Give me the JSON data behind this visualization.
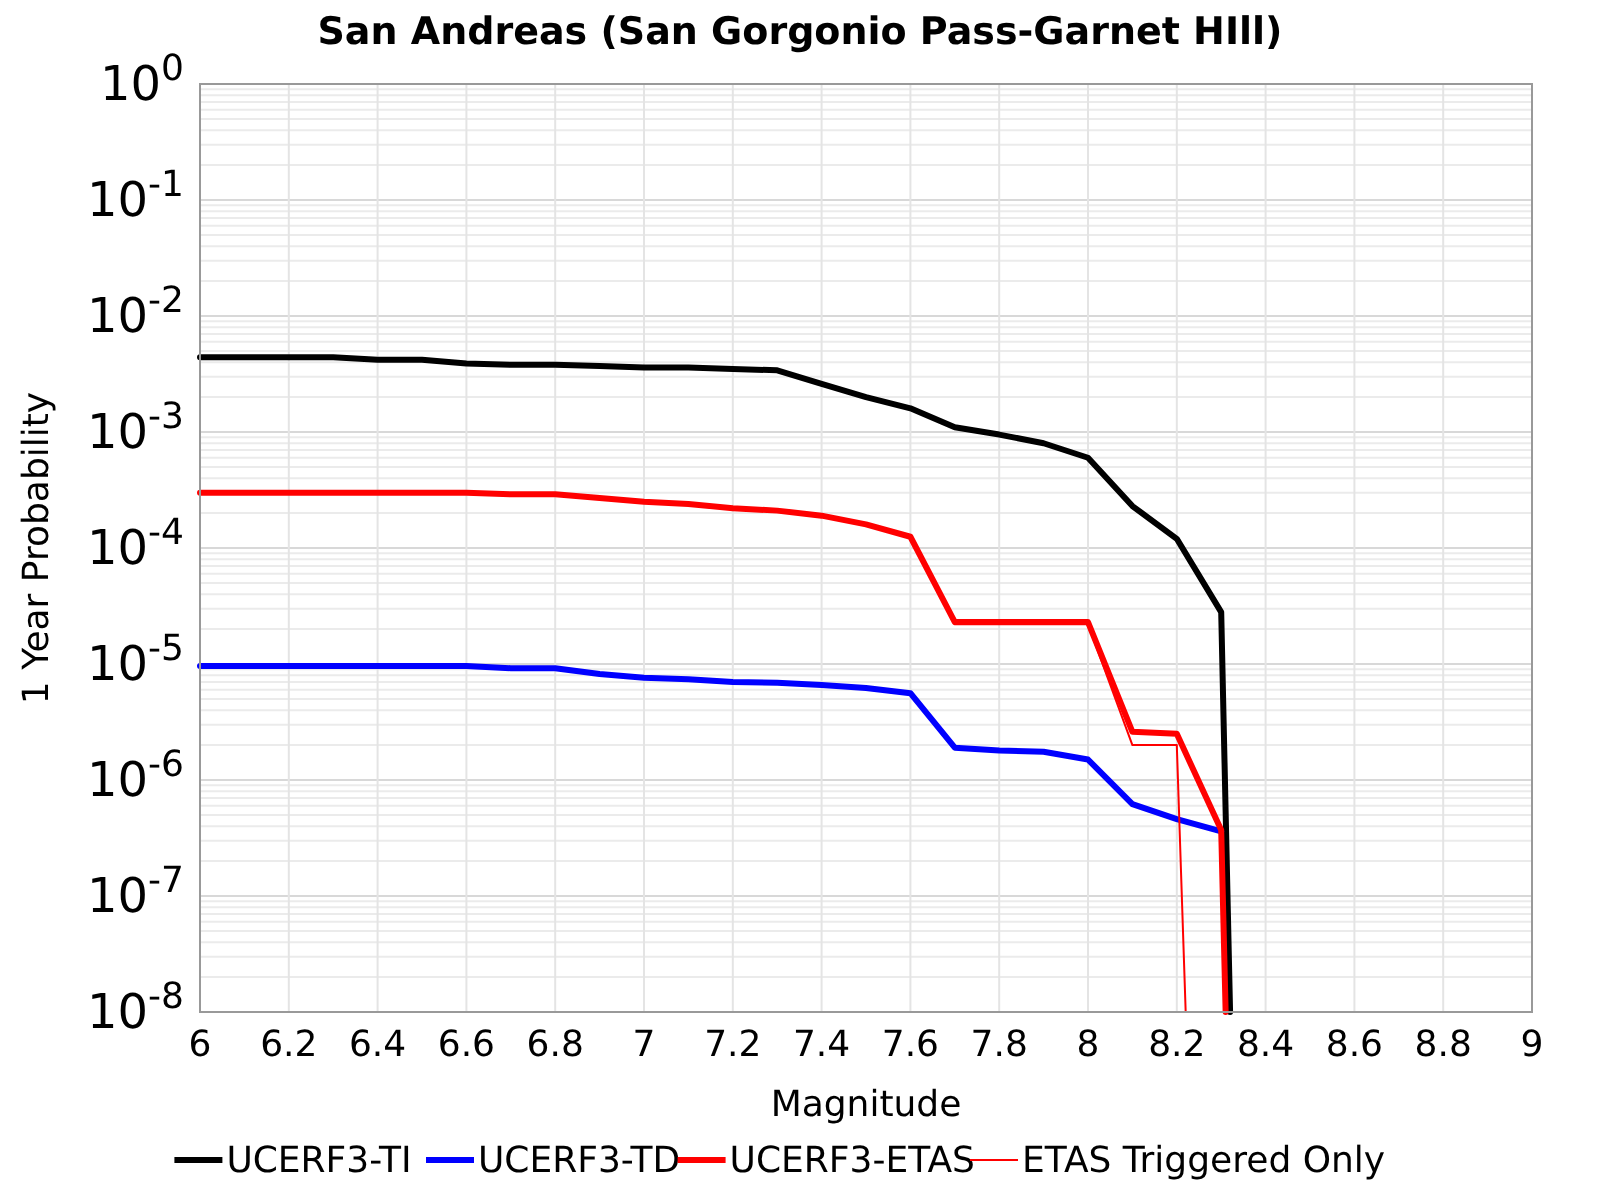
{
  "chart_data": {
    "type": "line",
    "title": "San Andreas (San Gorgonio Pass-Garnet HIll)",
    "xlabel": "Magnitude",
    "ylabel": "1 Year Probability",
    "log": "y",
    "grid": true,
    "legend": "bottom",
    "xlim": [
      6,
      9
    ],
    "xticks": [
      6,
      6.2,
      6.4,
      6.6,
      6.8,
      7,
      7.2,
      7.4,
      7.6,
      7.8,
      8,
      8.2,
      8.4,
      8.6,
      8.8,
      9
    ],
    "ylim": [
      1e-08,
      1
    ],
    "yticks": [
      {
        "value": 1e-08,
        "label": "10$^{-8}$"
      },
      {
        "value": 1e-07,
        "label": "10$^{-7}$"
      },
      {
        "value": 1e-06,
        "label": "10$^{-6}$"
      },
      {
        "value": 1e-05,
        "label": "10$^{-5}$"
      },
      {
        "value": 0.0001,
        "label": "10$^{-4}$"
      },
      {
        "value": 0.001,
        "label": "10$^{-3}$"
      },
      {
        "value": 0.01,
        "label": "10$^{-2}$"
      },
      {
        "value": 0.1,
        "label": "10$^{-1}$"
      },
      {
        "value": 1,
        "label": "10$^{0}$"
      }
    ],
    "series": [
      {
        "name": "UCERF3-TI",
        "color": "#000000",
        "x": [
          6,
          6.1,
          6.2,
          6.3,
          6.4,
          6.5,
          6.6,
          6.7,
          6.8,
          6.9,
          7,
          7.1,
          7.2,
          7.3,
          7.4,
          7.5,
          7.6,
          7.7,
          7.8,
          7.9,
          8,
          8.1,
          8.2,
          8.3,
          8.32
        ],
        "values": [
          0.0044,
          0.0044,
          0.0044,
          0.0044,
          0.0042,
          0.0042,
          0.0039,
          0.0038,
          0.0038,
          0.0037,
          0.0036,
          0.0036,
          0.0035,
          0.0034,
          0.0026,
          0.002,
          0.0016,
          0.0011,
          0.00095,
          0.0008,
          0.0006,
          0.00023,
          0.00012,
          2.8e-05,
          1e-08
        ]
      },
      {
        "name": "UCERF3-TD",
        "color": "#0000ff",
        "x": [
          6,
          6.1,
          6.2,
          6.3,
          6.4,
          6.5,
          6.6,
          6.7,
          6.8,
          6.9,
          7,
          7.1,
          7.2,
          7.3,
          7.4,
          7.5,
          7.6,
          7.7,
          7.8,
          7.9,
          8,
          8.1,
          8.2,
          8.3
        ],
        "values": [
          9.6e-06,
          9.6e-06,
          9.6e-06,
          9.6e-06,
          9.6e-06,
          9.6e-06,
          9.6e-06,
          9.2e-06,
          9.2e-06,
          8.2e-06,
          7.6e-06,
          7.4e-06,
          7e-06,
          6.9e-06,
          6.6e-06,
          6.2e-06,
          5.6e-06,
          1.9e-06,
          1.8e-06,
          1.75e-06,
          1.5e-06,
          6.2e-07,
          4.6e-07,
          3.6e-07
        ]
      },
      {
        "name": "UCERF3-ETAS",
        "color": "#ff0000",
        "x": [
          6,
          6.1,
          6.2,
          6.3,
          6.4,
          6.5,
          6.6,
          6.7,
          6.8,
          6.9,
          7,
          7.1,
          7.2,
          7.3,
          7.4,
          7.5,
          7.6,
          7.7,
          7.8,
          7.9,
          8,
          8.1,
          8.2,
          8.3,
          8.31
        ],
        "values": [
          0.0003,
          0.0003,
          0.0003,
          0.0003,
          0.0003,
          0.0003,
          0.0003,
          0.00029,
          0.00029,
          0.00027,
          0.00025,
          0.00024,
          0.00022,
          0.00021,
          0.00019,
          0.00016,
          0.000125,
          2.3e-05,
          2.3e-05,
          2.3e-05,
          2.3e-05,
          2.6e-06,
          2.5e-06,
          3.7e-07,
          1e-08
        ]
      },
      {
        "name": "ETAS Triggered Only",
        "color": "#ff0000",
        "x": [
          6,
          6.1,
          6.2,
          6.3,
          6.4,
          6.5,
          6.6,
          6.7,
          6.8,
          6.9,
          7,
          7.1,
          7.2,
          7.3,
          7.4,
          7.5,
          7.6,
          7.7,
          7.8,
          7.9,
          8,
          8.1,
          8.2,
          8.22
        ],
        "values": [
          0.0003,
          0.0003,
          0.0003,
          0.0003,
          0.0003,
          0.0003,
          0.0003,
          0.00029,
          0.00029,
          0.00027,
          0.00025,
          0.00024,
          0.00022,
          0.00021,
          0.00019,
          0.00016,
          0.000125,
          2.2e-05,
          2.2e-05,
          2.2e-05,
          2.2e-05,
          2e-06,
          2e-06,
          1e-08
        ]
      }
    ]
  }
}
